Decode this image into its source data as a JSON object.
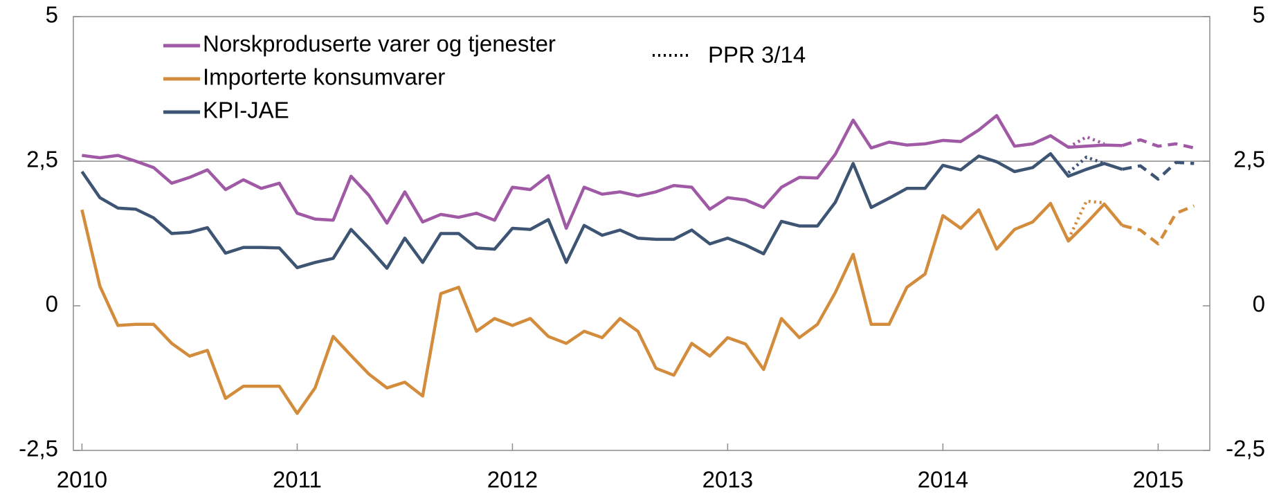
{
  "chart_data": {
    "type": "line",
    "xlim": [
      2009.96,
      2015.24
    ],
    "xticks": [
      2010,
      2011,
      2012,
      2013,
      2014,
      2015
    ],
    "ylim": [
      -2.5,
      5
    ],
    "yticks": [
      {
        "value": -2.5,
        "label": "-2,5"
      },
      0,
      {
        "value": 2.5,
        "label": "2,5"
      },
      5
    ],
    "reference_line": 2.5,
    "x": [
      2010,
      2010.083,
      2010.167,
      2010.25,
      2010.333,
      2010.417,
      2010.5,
      2010.583,
      2010.667,
      2010.75,
      2010.833,
      2010.917,
      2011,
      2011.083,
      2011.167,
      2011.25,
      2011.333,
      2011.417,
      2011.5,
      2011.583,
      2011.667,
      2011.75,
      2011.833,
      2011.917,
      2012,
      2012.083,
      2012.167,
      2012.25,
      2012.333,
      2012.417,
      2012.5,
      2012.583,
      2012.667,
      2012.75,
      2012.833,
      2012.917,
      2013,
      2013.083,
      2013.167,
      2013.25,
      2013.333,
      2013.417,
      2013.5,
      2013.583,
      2013.667,
      2013.75,
      2013.833,
      2013.917,
      2014,
      2014.083,
      2014.167,
      2014.25,
      2014.333,
      2014.417,
      2014.5,
      2014.583,
      2014.667,
      2014.75,
      2014.833
    ],
    "series": [
      {
        "name": "Norskproduserte varer og tjenester",
        "color": "#a05aa5",
        "values": [
          2.6,
          2.56,
          2.6,
          2.5,
          2.39,
          2.12,
          2.22,
          2.35,
          2.01,
          2.18,
          2.03,
          2.12,
          1.6,
          1.5,
          1.48,
          2.24,
          1.91,
          1.43,
          1.97,
          1.45,
          1.58,
          1.53,
          1.6,
          1.48,
          2.05,
          2.01,
          2.25,
          1.34,
          2.05,
          1.93,
          1.97,
          1.9,
          1.97,
          2.08,
          2.05,
          1.67,
          1.87,
          1.83,
          1.7,
          2.05,
          2.22,
          2.21,
          2.62,
          3.21,
          2.73,
          2.83,
          2.78,
          2.8,
          2.86,
          2.84,
          3.04,
          3.29,
          2.76,
          2.8,
          2.94,
          2.74,
          2.76,
          2.78,
          2.77
        ]
      },
      {
        "name": "Importerte konsumvarer",
        "color": "#d38c3c",
        "values": [
          1.66,
          0.34,
          -0.34,
          -0.32,
          -0.32,
          -0.65,
          -0.87,
          -0.77,
          -1.6,
          -1.39,
          -1.39,
          -1.39,
          -1.86,
          -1.42,
          -0.53,
          -0.86,
          -1.18,
          -1.42,
          -1.32,
          -1.56,
          0.21,
          0.32,
          -0.44,
          -0.22,
          -0.34,
          -0.22,
          -0.53,
          -0.65,
          -0.44,
          -0.55,
          -0.22,
          -0.44,
          -1.08,
          -1.2,
          -0.65,
          -0.87,
          -0.55,
          -0.66,
          -1.1,
          -0.22,
          -0.55,
          -0.32,
          0.23,
          0.89,
          -0.32,
          -0.32,
          0.32,
          0.55,
          1.56,
          1.34,
          1.66,
          0.98,
          1.32,
          1.45,
          1.77,
          1.12,
          1.43,
          1.76,
          1.39
        ]
      },
      {
        "name": "KPI-JAE",
        "color": "#3d5573",
        "values": [
          2.32,
          1.87,
          1.69,
          1.67,
          1.52,
          1.25,
          1.27,
          1.35,
          0.91,
          1.01,
          1.01,
          1.0,
          0.66,
          0.75,
          0.82,
          1.32,
          1.0,
          0.65,
          1.17,
          0.75,
          1.25,
          1.25,
          1.0,
          0.98,
          1.34,
          1.32,
          1.49,
          0.75,
          1.39,
          1.22,
          1.31,
          1.17,
          1.15,
          1.15,
          1.31,
          1.07,
          1.17,
          1.05,
          0.9,
          1.46,
          1.38,
          1.38,
          1.79,
          2.46,
          1.7,
          1.86,
          2.03,
          2.03,
          2.43,
          2.35,
          2.59,
          2.49,
          2.32,
          2.39,
          2.63,
          2.24,
          2.36,
          2.46,
          2.36
        ]
      }
    ],
    "projection": {
      "style": "dashed",
      "x": [
        2014.833,
        2014.917,
        2015,
        2015.083,
        2015.167
      ],
      "series": [
        {
          "color": "#a05aa5",
          "values": [
            2.77,
            2.87,
            2.76,
            2.8,
            2.73
          ]
        },
        {
          "color": "#d38c3c",
          "values": [
            1.39,
            1.31,
            1.07,
            1.6,
            1.73
          ]
        },
        {
          "color": "#3d5573",
          "values": [
            2.36,
            2.42,
            2.19,
            2.48,
            2.46
          ]
        }
      ]
    },
    "ppr": {
      "name": "PPR 3/14",
      "style": "dotted",
      "legend_color": "#000000",
      "x": [
        2014.583,
        2014.667,
        2014.75
      ],
      "series": [
        {
          "color": "#a05aa5",
          "values": [
            2.74,
            2.92,
            2.8
          ]
        },
        {
          "color": "#d38c3c",
          "values": [
            1.15,
            1.81,
            1.78
          ]
        },
        {
          "color": "#3d5573",
          "values": [
            2.3,
            2.57,
            2.46
          ]
        }
      ]
    }
  }
}
